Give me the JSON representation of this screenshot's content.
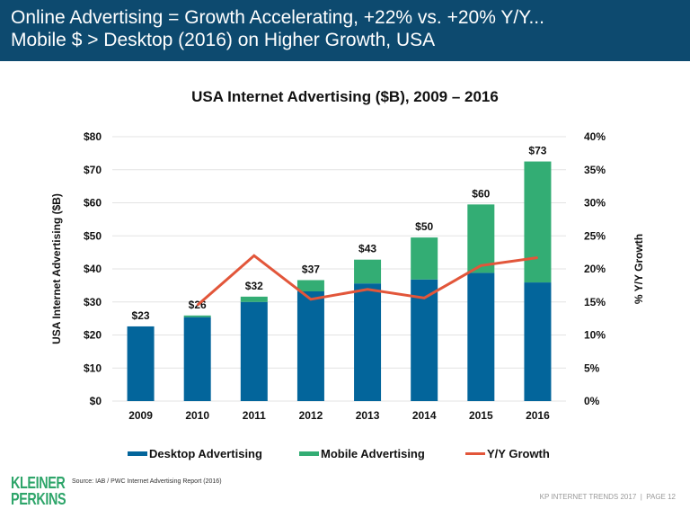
{
  "header": {
    "line1": "Online Advertising = Growth Accelerating, +22% vs. +20% Y/Y...",
    "line2": "Mobile $ > Desktop (2016) on Higher Growth, USA"
  },
  "chart_data": {
    "type": "bar",
    "title": "USA Internet Advertising ($B), 2009 – 2016",
    "categories": [
      "2009",
      "2010",
      "2011",
      "2012",
      "2013",
      "2014",
      "2015",
      "2016"
    ],
    "series": [
      {
        "name": "Desktop Advertising",
        "type": "bar",
        "stacked": true,
        "color": "#03659b",
        "values": [
          22.6,
          25.4,
          30.0,
          33.2,
          35.6,
          36.8,
          38.8,
          35.9
        ]
      },
      {
        "name": "Mobile Advertising",
        "type": "bar",
        "stacked": true,
        "color": "#33ad74",
        "values": [
          0,
          0.5,
          1.6,
          3.4,
          7.2,
          12.7,
          20.7,
          36.6
        ]
      },
      {
        "name": "Y/Y Growth",
        "type": "line",
        "axis": "right",
        "color": "#e2563a",
        "values": [
          null,
          14.5,
          22.0,
          15.4,
          16.9,
          15.6,
          20.5,
          21.7
        ]
      }
    ],
    "total_labels": [
      "$23",
      "$26",
      "$32",
      "$37",
      "$43",
      "$50",
      "$60",
      "$73"
    ],
    "ylabel": "USA Internet Advertising ($B)",
    "ylim": [
      0,
      80
    ],
    "yticks": [
      "$0",
      "$10",
      "$20",
      "$30",
      "$40",
      "$50",
      "$60",
      "$70",
      "$80"
    ],
    "y2label": "% Y/Y Growth",
    "y2lim": [
      0,
      40
    ],
    "y2ticks": [
      "0%",
      "5%",
      "10%",
      "15%",
      "20%",
      "25%",
      "30%",
      "35%",
      "40%"
    ],
    "grid": true,
    "legend": "bottom"
  },
  "source": "Source: IAB / PWC Internet Advertising Report (2016)",
  "logo": {
    "line1": "KLEINER",
    "line2": "PERKINS"
  },
  "footer": "KP INTERNET TRENDS 2017  |  PAGE 12"
}
